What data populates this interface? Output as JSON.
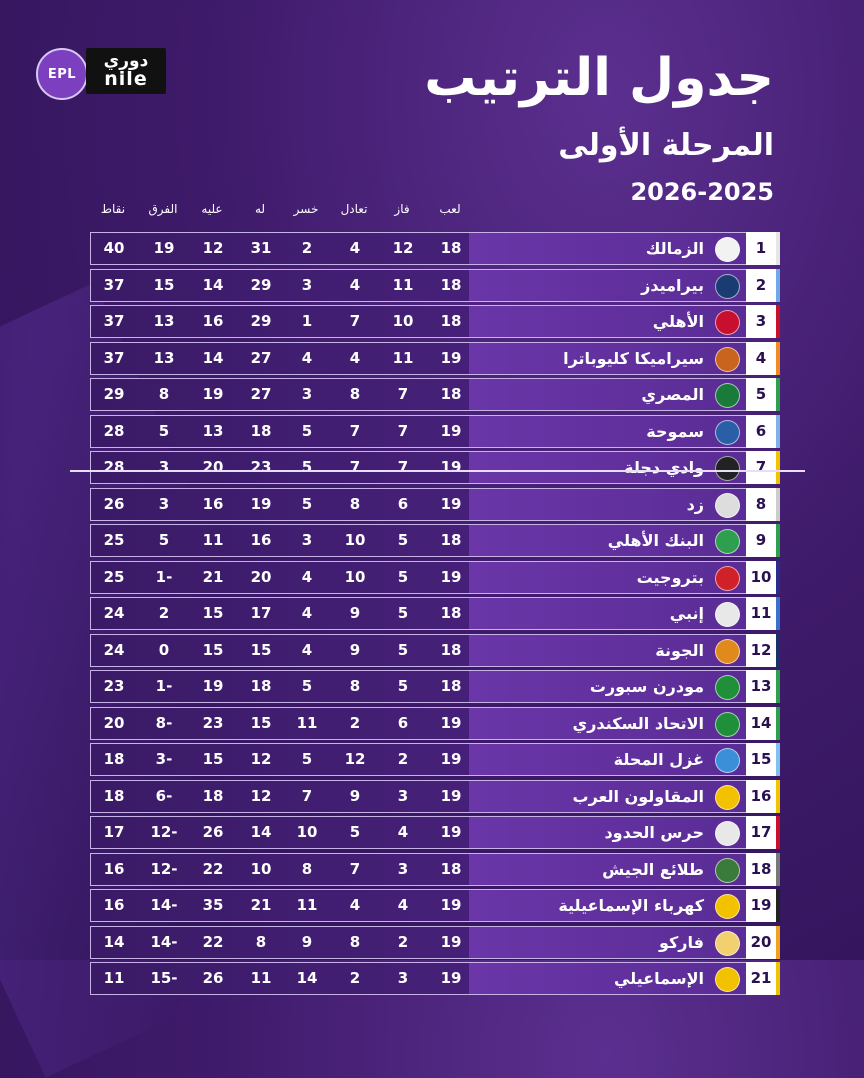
{
  "logo": {
    "badge": "EPL",
    "line1": "دوري",
    "line2": "nile"
  },
  "title": "جدول الترتيب",
  "subtitle": "المرحلة الأولى",
  "season": "2026-2025",
  "headers": {
    "played": "لعب",
    "won": "فاز",
    "drawn": "تعادل",
    "lost": "خسر",
    "for": "له",
    "against": "عليه",
    "diff": "الفرق",
    "points": "نقاط"
  },
  "rows": [
    {
      "rank": "1",
      "team": "الزمالك",
      "played": "18",
      "won": "12",
      "drawn": "4",
      "lost": "2",
      "for": "31",
      "against": "12",
      "diff": "19",
      "points": "40",
      "logo_color": "#f2f2f2",
      "rank_accent": "#e6e6e6"
    },
    {
      "rank": "2",
      "team": "بيراميدز",
      "played": "18",
      "won": "11",
      "drawn": "4",
      "lost": "3",
      "for": "29",
      "against": "14",
      "diff": "15",
      "points": "37",
      "logo_color": "#1b3c73",
      "rank_accent": "#6fa8e8"
    },
    {
      "rank": "3",
      "team": "الأهلي",
      "played": "18",
      "won": "10",
      "drawn": "7",
      "lost": "1",
      "for": "29",
      "against": "16",
      "diff": "13",
      "points": "37",
      "logo_color": "#c8102e",
      "rank_accent": "#c8102e"
    },
    {
      "rank": "4",
      "team": "سيراميكا كليوباترا",
      "played": "19",
      "won": "11",
      "drawn": "4",
      "lost": "4",
      "for": "27",
      "against": "14",
      "diff": "13",
      "points": "37",
      "logo_color": "#c8641e",
      "rank_accent": "#f08a24"
    },
    {
      "rank": "5",
      "team": "المصري",
      "played": "18",
      "won": "7",
      "drawn": "8",
      "lost": "3",
      "for": "27",
      "against": "19",
      "diff": "8",
      "points": "29",
      "logo_color": "#1a7a3a",
      "rank_accent": "#2e9e4f"
    },
    {
      "rank": "6",
      "team": "سموحة",
      "played": "19",
      "won": "7",
      "drawn": "7",
      "lost": "5",
      "for": "18",
      "against": "13",
      "diff": "5",
      "points": "28",
      "logo_color": "#2a5fa8",
      "rank_accent": "#7fb0e6"
    },
    {
      "rank": "7",
      "team": "وادي دجلة",
      "played": "19",
      "won": "7",
      "drawn": "7",
      "lost": "5",
      "for": "23",
      "against": "20",
      "diff": "3",
      "points": "28",
      "logo_color": "#222222",
      "rank_accent": "#f2c200"
    },
    {
      "rank": "8",
      "team": "زد",
      "played": "19",
      "won": "6",
      "drawn": "8",
      "lost": "5",
      "for": "19",
      "against": "16",
      "diff": "3",
      "points": "26",
      "logo_color": "#dddddd",
      "rank_accent": "#cccccc"
    },
    {
      "rank": "9",
      "team": "البنك الأهلي",
      "played": "18",
      "won": "5",
      "drawn": "10",
      "lost": "3",
      "for": "16",
      "against": "11",
      "diff": "5",
      "points": "25",
      "logo_color": "#2e9e4f",
      "rank_accent": "#2e9e4f"
    },
    {
      "rank": "10",
      "team": "بتروجيت",
      "played": "19",
      "won": "5",
      "drawn": "10",
      "lost": "4",
      "for": "20",
      "against": "21",
      "diff": "1-",
      "points": "25",
      "logo_color": "#d0202a",
      "rank_accent": "#2b2b8c"
    },
    {
      "rank": "11",
      "team": "إنبي",
      "played": "18",
      "won": "5",
      "drawn": "9",
      "lost": "4",
      "for": "17",
      "against": "15",
      "diff": "2",
      "points": "24",
      "logo_color": "#e8e8e8",
      "rank_accent": "#3a6fd0"
    },
    {
      "rank": "12",
      "team": "الجونة",
      "played": "18",
      "won": "5",
      "drawn": "9",
      "lost": "4",
      "for": "15",
      "against": "15",
      "diff": "0",
      "points": "24",
      "logo_color": "#e08a1e",
      "rank_accent": "#1b2f6b"
    },
    {
      "rank": "13",
      "team": "مودرن سبورت",
      "played": "18",
      "won": "5",
      "drawn": "8",
      "lost": "5",
      "for": "18",
      "against": "19",
      "diff": "1-",
      "points": "23",
      "logo_color": "#1f8f3a",
      "rank_accent": "#2e9e4f"
    },
    {
      "rank": "14",
      "team": "الاتحاد السكندري",
      "played": "19",
      "won": "6",
      "drawn": "2",
      "lost": "11",
      "for": "15",
      "against": "23",
      "diff": "8-",
      "points": "20",
      "logo_color": "#1f8f3a",
      "rank_accent": "#2e9e4f"
    },
    {
      "rank": "15",
      "team": "غزل المحلة",
      "played": "19",
      "won": "2",
      "drawn": "12",
      "lost": "5",
      "for": "12",
      "against": "15",
      "diff": "3-",
      "points": "18",
      "logo_color": "#3a8fd8",
      "rank_accent": "#7fc0f0"
    },
    {
      "rank": "16",
      "team": "المقاولون العرب",
      "played": "19",
      "won": "3",
      "drawn": "9",
      "lost": "7",
      "for": "12",
      "against": "18",
      "diff": "6-",
      "points": "18",
      "logo_color": "#f2c200",
      "rank_accent": "#f2c200"
    },
    {
      "rank": "17",
      "team": "حرس الحدود",
      "played": "19",
      "won": "4",
      "drawn": "5",
      "lost": "10",
      "for": "14",
      "against": "26",
      "diff": "12-",
      "points": "17",
      "logo_color": "#e8e8e8",
      "rank_accent": "#c8102e"
    },
    {
      "rank": "18",
      "team": "طلائع الجيش",
      "played": "18",
      "won": "3",
      "drawn": "7",
      "lost": "8",
      "for": "10",
      "against": "22",
      "diff": "12-",
      "points": "16",
      "logo_color": "#3a7a3a",
      "rank_accent": "#777777"
    },
    {
      "rank": "19",
      "team": "كهرباء الإسماعيلية",
      "played": "19",
      "won": "4",
      "drawn": "4",
      "lost": "11",
      "for": "21",
      "against": "35",
      "diff": "14-",
      "points": "16",
      "logo_color": "#f2c200",
      "rank_accent": "#222222"
    },
    {
      "rank": "20",
      "team": "فاركو",
      "played": "19",
      "won": "2",
      "drawn": "8",
      "lost": "9",
      "for": "8",
      "against": "22",
      "diff": "14-",
      "points": "14",
      "logo_color": "#f2d070",
      "rank_accent": "#f2a020"
    },
    {
      "rank": "21",
      "team": "الإسماعيلي",
      "played": "19",
      "won": "3",
      "drawn": "2",
      "lost": "14",
      "for": "11",
      "against": "26",
      "diff": "15-",
      "points": "11",
      "logo_color": "#f2c200",
      "rank_accent": "#f2c200"
    }
  ]
}
